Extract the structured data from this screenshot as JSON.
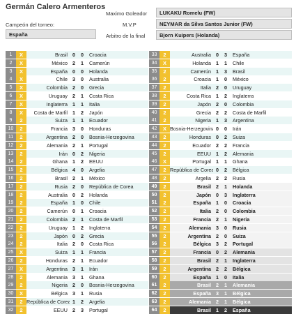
{
  "header": {
    "name": "Germán Calero Armenteros",
    "champion_label": "Campeón del torneo:",
    "champion": "España",
    "top_scorer_label": "Maximo Goleador",
    "top_scorer": "LUKAKU Romelu (FW)",
    "mvp_label": "M.V.P",
    "mvp": "NEYMAR da Silva Santos Junior (FW)",
    "referee_label": "Arbitro de la final",
    "referee": "Bjorn Kuipers (Holanda)"
  },
  "left_matches": [
    {
      "n": "1",
      "p": "X",
      "home": "Brasil",
      "hs": "0",
      "as": "0",
      "away": "Croacia"
    },
    {
      "n": "2",
      "p": "X",
      "home": "México",
      "hs": "2",
      "as": "1",
      "away": "Camerún"
    },
    {
      "n": "3",
      "p": "X",
      "home": "España",
      "hs": "0",
      "as": "0",
      "away": "Holanda"
    },
    {
      "n": "4",
      "p": "X",
      "home": "Chile",
      "hs": "3",
      "as": "0",
      "away": "Australia"
    },
    {
      "n": "5",
      "p": "X",
      "home": "Colombia",
      "hs": "2",
      "as": "0",
      "away": "Grecia"
    },
    {
      "n": "6",
      "p": "X",
      "home": "Uruguay",
      "hs": "2",
      "as": "1",
      "away": "Costa Rica"
    },
    {
      "n": "7",
      "p": "X",
      "home": "Inglaterra",
      "hs": "1",
      "as": "1",
      "away": "Italia"
    },
    {
      "n": "8",
      "p": "X",
      "home": "Costa de Marfil",
      "hs": "1",
      "as": "2",
      "away": "Japón"
    },
    {
      "n": "9",
      "p": "2",
      "home": "Suiza",
      "hs": "1",
      "as": "1",
      "away": "Ecuador"
    },
    {
      "n": "10",
      "p": "2",
      "home": "Francia",
      "hs": "3",
      "as": "0",
      "away": "Honduras"
    },
    {
      "n": "11",
      "p": "2",
      "home": "Argentina",
      "hs": "2",
      "as": "0",
      "away": "Bosnia-Herzegovina"
    },
    {
      "n": "12",
      "p": "2",
      "home": "Alemania",
      "hs": "2",
      "as": "1",
      "away": "Portugal"
    },
    {
      "n": "13",
      "p": "2",
      "home": "Irán",
      "hs": "0",
      "as": "2",
      "away": "Nigeria"
    },
    {
      "n": "14",
      "p": "2",
      "home": "Ghana",
      "hs": "1",
      "as": "2",
      "away": "EEUU"
    },
    {
      "n": "15",
      "p": "2",
      "home": "Bélgica",
      "hs": "4",
      "as": "0",
      "away": "Argelia"
    },
    {
      "n": "16",
      "p": "2",
      "home": "Brasil",
      "hs": "2",
      "as": "1",
      "away": "México"
    },
    {
      "n": "17",
      "p": "2",
      "home": "Rusia",
      "hs": "2",
      "as": "0",
      "away": "República de Corea"
    },
    {
      "n": "18",
      "p": "2",
      "home": "Australia",
      "hs": "0",
      "as": "2",
      "away": "Holanda"
    },
    {
      "n": "19",
      "p": "2",
      "home": "España",
      "hs": "1",
      "as": "0",
      "away": "Chile"
    },
    {
      "n": "20",
      "p": "2",
      "home": "Camerún",
      "hs": "0",
      "as": "1",
      "away": "Croacia"
    },
    {
      "n": "21",
      "p": "2",
      "home": "Colombia",
      "hs": "2",
      "as": "1",
      "away": "Costa de Marfil"
    },
    {
      "n": "22",
      "p": "2",
      "home": "Uruguay",
      "hs": "1",
      "as": "2",
      "away": "Inglaterra"
    },
    {
      "n": "23",
      "p": "2",
      "home": "Japón",
      "hs": "0",
      "as": "2",
      "away": "Grecia"
    },
    {
      "n": "24",
      "p": "2",
      "home": "Italia",
      "hs": "2",
      "as": "0",
      "away": "Costa Rica"
    },
    {
      "n": "25",
      "p": "X",
      "home": "Suiza",
      "hs": "1",
      "as": "1",
      "away": "Francia"
    },
    {
      "n": "26",
      "p": "2",
      "home": "Honduras",
      "hs": "2",
      "as": "1",
      "away": "Ecuador"
    },
    {
      "n": "27",
      "p": "X",
      "home": "Argentina",
      "hs": "3",
      "as": "1",
      "away": "Irán"
    },
    {
      "n": "28",
      "p": "2",
      "home": "Alemania",
      "hs": "3",
      "as": "1",
      "away": "Ghana"
    },
    {
      "n": "29",
      "p": "2",
      "home": "Nigeria",
      "hs": "2",
      "as": "0",
      "away": "Bosnia-Herzegovina"
    },
    {
      "n": "30",
      "p": "X",
      "home": "Bélgica",
      "hs": "3",
      "as": "1",
      "away": "Rusia"
    },
    {
      "n": "31",
      "p": "2",
      "home": "República de Corea",
      "hs": "1",
      "as": "2",
      "away": "Argelia"
    },
    {
      "n": "32",
      "p": "2",
      "home": "EEUU",
      "hs": "2",
      "as": "3",
      "away": "Portugal"
    }
  ],
  "right_matches": [
    {
      "n": "33",
      "p": "2",
      "home": "Australia",
      "hs": "0",
      "as": "3",
      "away": "España"
    },
    {
      "n": "34",
      "p": "X",
      "home": "Holanda",
      "hs": "1",
      "as": "1",
      "away": "Chile"
    },
    {
      "n": "35",
      "p": "2",
      "home": "Camerún",
      "hs": "1",
      "as": "3",
      "away": "Brasil"
    },
    {
      "n": "36",
      "p": "2",
      "home": "Croacia",
      "hs": "1",
      "as": "0",
      "away": "México"
    },
    {
      "n": "37",
      "p": "2",
      "home": "Italia",
      "hs": "2",
      "as": "0",
      "away": "Uruguay"
    },
    {
      "n": "38",
      "p": "2",
      "home": "Costa Rica",
      "hs": "1",
      "as": "2",
      "away": "Inglaterra"
    },
    {
      "n": "39",
      "p": "2",
      "home": "Japón",
      "hs": "2",
      "as": "0",
      "away": "Colombia"
    },
    {
      "n": "40",
      "p": "2",
      "home": "Grecia",
      "hs": "2",
      "as": "2",
      "away": "Costa de Marfil"
    },
    {
      "n": "41",
      "p": "2",
      "home": "Nigeria",
      "hs": "1",
      "as": "3",
      "away": "Argentina"
    },
    {
      "n": "42",
      "p": "X",
      "home": "Bosnia-Herzegovina",
      "hs": "0",
      "as": "0",
      "away": "Irán"
    },
    {
      "n": "43",
      "p": "2",
      "home": "Honduras",
      "hs": "0",
      "as": "2",
      "away": "Suiza"
    },
    {
      "n": "44",
      "p": "2",
      "home": "Ecuador",
      "hs": "2",
      "as": "2",
      "away": "Francia"
    },
    {
      "n": "45",
      "p": "2",
      "home": "EEUU",
      "hs": "1",
      "as": "2",
      "away": "Alemania"
    },
    {
      "n": "46",
      "p": "X",
      "home": "Portugal",
      "hs": "1",
      "as": "1",
      "away": "Ghana"
    },
    {
      "n": "47",
      "p": "2",
      "home": "República de Corea",
      "hs": "0",
      "as": "2",
      "away": "Bélgica"
    },
    {
      "n": "48",
      "p": "2",
      "home": "Argelia",
      "hs": "2",
      "as": "2",
      "away": "Rusia"
    },
    {
      "n": "49",
      "p": "2",
      "home": "Brasil",
      "hs": "2",
      "as": "1",
      "away": "Holanda"
    },
    {
      "n": "50",
      "p": "2",
      "home": "Japón",
      "hs": "0",
      "as": "3",
      "away": "Inglaterra"
    },
    {
      "n": "51",
      "p": "2",
      "home": "España",
      "hs": "1",
      "as": "0",
      "away": "Croacia"
    },
    {
      "n": "52",
      "p": "2",
      "home": "Italia",
      "hs": "2",
      "as": "0",
      "away": "Colombia"
    },
    {
      "n": "53",
      "p": "2",
      "home": "Francia",
      "hs": "2",
      "as": "1",
      "away": "Nigeria"
    },
    {
      "n": "54",
      "p": "2",
      "home": "Alemania",
      "hs": "3",
      "as": "0",
      "away": "Rusia"
    },
    {
      "n": "55",
      "p": "2",
      "home": "Argentina",
      "hs": "2",
      "as": "0",
      "away": "Suiza"
    },
    {
      "n": "56",
      "p": "2",
      "home": "Bélgica",
      "hs": "3",
      "as": "2",
      "away": "Portugal"
    },
    {
      "n": "57",
      "p": "2",
      "home": "Francia",
      "hs": "0",
      "as": "2",
      "away": "Alemania"
    },
    {
      "n": "58",
      "p": "2",
      "home": "Brasil",
      "hs": "2",
      "as": "1",
      "away": "Inglaterra"
    },
    {
      "n": "59",
      "p": "2",
      "home": "Argentina",
      "hs": "2",
      "as": "2",
      "away": "Bélgica"
    },
    {
      "n": "60",
      "p": "2",
      "home": "España",
      "hs": "1",
      "as": "0",
      "away": "Italia"
    },
    {
      "n": "61",
      "p": "2",
      "home": "Brasil",
      "hs": "2",
      "as": "1",
      "away": "Alemania"
    },
    {
      "n": "62",
      "p": "2",
      "home": "España",
      "hs": "3",
      "as": "1",
      "away": "Bélgica"
    },
    {
      "n": "63",
      "p": "2",
      "home": "Alemania",
      "hs": "2",
      "as": "1",
      "away": "Bélgica"
    },
    {
      "n": "64",
      "p": "2",
      "home": "Brasil",
      "hs": "1",
      "as": "2",
      "away": "España"
    }
  ],
  "colors": {
    "row_alt": "#e9f6f5",
    "number_cell": "#8c8c8c",
    "points_cell": "#f2c12e",
    "semifinal": "#a9a9a9",
    "final": "#3a3a3a"
  }
}
